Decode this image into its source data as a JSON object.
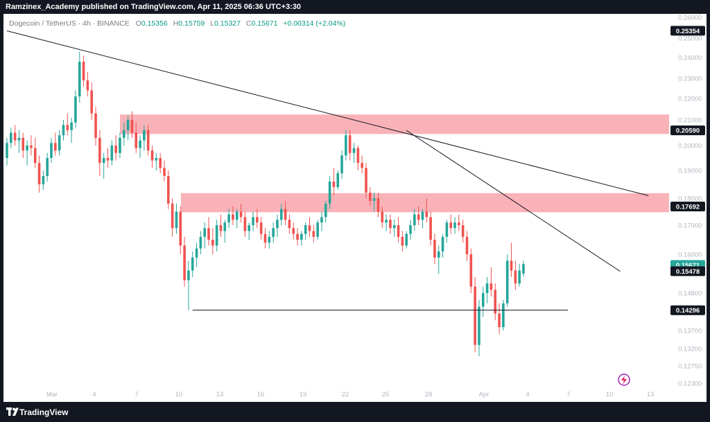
{
  "header": {
    "publisher_line": "Ramzinex_Academy published on TradingView.com, Apr 11, 2025 06:36 UTC+3:30"
  },
  "footer": {
    "brand": "TradingView"
  },
  "legend": {
    "symbol": "Dogecoin / TetherUS · 4h · BINANCE",
    "o_label": "O",
    "o_value": "0.15356",
    "h_label": "H",
    "h_value": "0.15759",
    "l_label": "L",
    "l_value": "0.15327",
    "c_label": "C",
    "c_value": "0.15671",
    "change": "+0.00314 (+2.04%)",
    "up_color": "#089981"
  },
  "colors": {
    "up": "#26a69a",
    "down": "#ef5350",
    "zone": "#f8a5ac",
    "line": "#131722",
    "axis_text": "#b2b5be"
  },
  "chart_data": {
    "type": "candlestick",
    "title": "",
    "xlabel": "",
    "ylabel": "",
    "timeframe": "4h",
    "ylim": [
      0.123,
      0.26
    ],
    "y_ticks": [
      "0.26000",
      "0.25000",
      "0.24000",
      "0.23000",
      "0.22000",
      "0.21000",
      "0.20000",
      "0.19000",
      "0.18000",
      "0.17000",
      "0.16000",
      "0.14800",
      "0.13700",
      "0.13200",
      "0.12750",
      "0.12300"
    ],
    "x_ticks": [
      "Mar",
      "4",
      "7",
      "10",
      "13",
      "16",
      "19",
      "22",
      "25",
      "28",
      "Apr",
      "4",
      "7",
      "10",
      "13"
    ],
    "price_labels": [
      {
        "text": "0.25354",
        "value": 0.25354,
        "style": "dark"
      },
      {
        "text": "0.20590",
        "value": 0.2059,
        "style": "dark"
      },
      {
        "text": "0.17692",
        "value": 0.17692,
        "style": "dark"
      },
      {
        "text": "0.15671",
        "value": 0.15671,
        "style": "green"
      },
      {
        "text": "0.15478",
        "value": 0.15478,
        "style": "dark"
      },
      {
        "text": "0.14296",
        "value": 0.14296,
        "style": "dark"
      }
    ],
    "zones": [
      {
        "name": "upper resistance zone",
        "from": 0.2045,
        "to": 0.2125
      },
      {
        "name": "lower resistance zone",
        "from": 0.1748,
        "to": 0.1818
      }
    ],
    "trendlines": [
      {
        "from": [
          0,
          0.2535
        ],
        "to": [
          159,
          0.1809
        ]
      },
      {
        "from": [
          99,
          0.2059
        ],
        "to": [
          152,
          0.1547
        ]
      },
      {
        "from": [
          46,
          0.143
        ],
        "to": [
          139,
          0.143
        ]
      }
    ],
    "candles": [
      [
        0.195,
        0.203,
        0.192,
        0.201
      ],
      [
        0.201,
        0.207,
        0.199,
        0.205
      ],
      [
        0.205,
        0.208,
        0.2,
        0.202
      ],
      [
        0.202,
        0.206,
        0.197,
        0.203
      ],
      [
        0.203,
        0.205,
        0.195,
        0.198
      ],
      [
        0.198,
        0.202,
        0.192,
        0.2
      ],
      [
        0.2,
        0.204,
        0.196,
        0.199
      ],
      [
        0.199,
        0.203,
        0.191,
        0.193
      ],
      [
        0.193,
        0.196,
        0.182,
        0.185
      ],
      [
        0.185,
        0.19,
        0.183,
        0.188
      ],
      [
        0.188,
        0.197,
        0.186,
        0.195
      ],
      [
        0.195,
        0.203,
        0.193,
        0.201
      ],
      [
        0.201,
        0.205,
        0.196,
        0.198
      ],
      [
        0.198,
        0.206,
        0.196,
        0.204
      ],
      [
        0.204,
        0.21,
        0.202,
        0.208
      ],
      [
        0.208,
        0.213,
        0.204,
        0.206
      ],
      [
        0.206,
        0.211,
        0.201,
        0.209
      ],
      [
        0.209,
        0.224,
        0.207,
        0.221
      ],
      [
        0.221,
        0.243,
        0.218,
        0.238
      ],
      [
        0.238,
        0.241,
        0.226,
        0.229
      ],
      [
        0.229,
        0.233,
        0.221,
        0.224
      ],
      [
        0.224,
        0.228,
        0.21,
        0.213
      ],
      [
        0.213,
        0.216,
        0.2,
        0.203
      ],
      [
        0.203,
        0.206,
        0.188,
        0.193
      ],
      [
        0.193,
        0.197,
        0.187,
        0.195
      ],
      [
        0.195,
        0.199,
        0.191,
        0.194
      ],
      [
        0.194,
        0.202,
        0.192,
        0.2
      ],
      [
        0.2,
        0.204,
        0.194,
        0.197
      ],
      [
        0.197,
        0.205,
        0.195,
        0.203
      ],
      [
        0.203,
        0.209,
        0.2,
        0.206
      ],
      [
        0.206,
        0.212,
        0.202,
        0.21
      ],
      [
        0.21,
        0.214,
        0.203,
        0.205
      ],
      [
        0.205,
        0.209,
        0.197,
        0.199
      ],
      [
        0.199,
        0.204,
        0.195,
        0.202
      ],
      [
        0.202,
        0.208,
        0.198,
        0.206
      ],
      [
        0.206,
        0.208,
        0.196,
        0.198
      ],
      [
        0.198,
        0.2,
        0.191,
        0.194
      ],
      [
        0.194,
        0.197,
        0.19,
        0.195
      ],
      [
        0.195,
        0.197,
        0.189,
        0.191
      ],
      [
        0.191,
        0.194,
        0.186,
        0.188
      ],
      [
        0.188,
        0.19,
        0.176,
        0.178
      ],
      [
        0.178,
        0.18,
        0.166,
        0.169
      ],
      [
        0.169,
        0.178,
        0.167,
        0.175
      ],
      [
        0.175,
        0.177,
        0.16,
        0.163
      ],
      [
        0.163,
        0.166,
        0.15,
        0.152
      ],
      [
        0.152,
        0.158,
        0.143,
        0.155
      ],
      [
        0.155,
        0.161,
        0.153,
        0.159
      ],
      [
        0.159,
        0.164,
        0.156,
        0.162
      ],
      [
        0.162,
        0.168,
        0.16,
        0.166
      ],
      [
        0.166,
        0.171,
        0.162,
        0.169
      ],
      [
        0.169,
        0.173,
        0.163,
        0.165
      ],
      [
        0.165,
        0.169,
        0.16,
        0.163
      ],
      [
        0.163,
        0.172,
        0.161,
        0.17
      ],
      [
        0.17,
        0.174,
        0.166,
        0.168
      ],
      [
        0.168,
        0.172,
        0.164,
        0.171
      ],
      [
        0.171,
        0.176,
        0.169,
        0.174
      ],
      [
        0.174,
        0.177,
        0.17,
        0.172
      ],
      [
        0.172,
        0.176,
        0.169,
        0.175
      ],
      [
        0.175,
        0.178,
        0.171,
        0.173
      ],
      [
        0.173,
        0.175,
        0.166,
        0.168
      ],
      [
        0.168,
        0.171,
        0.165,
        0.17
      ],
      [
        0.17,
        0.175,
        0.168,
        0.173
      ],
      [
        0.173,
        0.176,
        0.169,
        0.171
      ],
      [
        0.171,
        0.173,
        0.165,
        0.167
      ],
      [
        0.167,
        0.169,
        0.162,
        0.164
      ],
      [
        0.164,
        0.168,
        0.162,
        0.166
      ],
      [
        0.166,
        0.171,
        0.164,
        0.169
      ],
      [
        0.169,
        0.174,
        0.166,
        0.172
      ],
      [
        0.172,
        0.178,
        0.17,
        0.176
      ],
      [
        0.176,
        0.179,
        0.17,
        0.172
      ],
      [
        0.172,
        0.174,
        0.167,
        0.169
      ],
      [
        0.169,
        0.171,
        0.165,
        0.167
      ],
      [
        0.167,
        0.169,
        0.163,
        0.165
      ],
      [
        0.165,
        0.168,
        0.163,
        0.167
      ],
      [
        0.167,
        0.171,
        0.165,
        0.17
      ],
      [
        0.17,
        0.173,
        0.166,
        0.168
      ],
      [
        0.168,
        0.17,
        0.164,
        0.166
      ],
      [
        0.166,
        0.172,
        0.165,
        0.171
      ],
      [
        0.171,
        0.175,
        0.168,
        0.173
      ],
      [
        0.173,
        0.179,
        0.171,
        0.178
      ],
      [
        0.178,
        0.188,
        0.176,
        0.186
      ],
      [
        0.186,
        0.191,
        0.181,
        0.184
      ],
      [
        0.184,
        0.19,
        0.183,
        0.189
      ],
      [
        0.189,
        0.198,
        0.187,
        0.196
      ],
      [
        0.196,
        0.206,
        0.194,
        0.204
      ],
      [
        0.204,
        0.206,
        0.194,
        0.197
      ],
      [
        0.197,
        0.201,
        0.193,
        0.199
      ],
      [
        0.199,
        0.2,
        0.19,
        0.193
      ],
      [
        0.193,
        0.196,
        0.189,
        0.191
      ],
      [
        0.191,
        0.193,
        0.18,
        0.182
      ],
      [
        0.182,
        0.184,
        0.177,
        0.179
      ],
      [
        0.179,
        0.182,
        0.175,
        0.18
      ],
      [
        0.18,
        0.182,
        0.173,
        0.175
      ],
      [
        0.175,
        0.177,
        0.169,
        0.171
      ],
      [
        0.171,
        0.174,
        0.168,
        0.172
      ],
      [
        0.172,
        0.174,
        0.167,
        0.169
      ],
      [
        0.169,
        0.172,
        0.166,
        0.17
      ],
      [
        0.17,
        0.173,
        0.164,
        0.166
      ],
      [
        0.166,
        0.168,
        0.161,
        0.163
      ],
      [
        0.163,
        0.168,
        0.162,
        0.167
      ],
      [
        0.167,
        0.172,
        0.165,
        0.17
      ],
      [
        0.17,
        0.176,
        0.168,
        0.174
      ],
      [
        0.174,
        0.177,
        0.17,
        0.172
      ],
      [
        0.172,
        0.176,
        0.169,
        0.175
      ],
      [
        0.175,
        0.18,
        0.171,
        0.173
      ],
      [
        0.173,
        0.175,
        0.163,
        0.165
      ],
      [
        0.165,
        0.167,
        0.157,
        0.159
      ],
      [
        0.159,
        0.163,
        0.154,
        0.161
      ],
      [
        0.161,
        0.167,
        0.159,
        0.166
      ],
      [
        0.166,
        0.172,
        0.164,
        0.171
      ],
      [
        0.171,
        0.174,
        0.167,
        0.169
      ],
      [
        0.169,
        0.173,
        0.167,
        0.171
      ],
      [
        0.171,
        0.174,
        0.168,
        0.17
      ],
      [
        0.17,
        0.172,
        0.164,
        0.166
      ],
      [
        0.166,
        0.168,
        0.158,
        0.16
      ],
      [
        0.16,
        0.162,
        0.148,
        0.15
      ],
      [
        0.15,
        0.153,
        0.131,
        0.133
      ],
      [
        0.133,
        0.146,
        0.13,
        0.144
      ],
      [
        0.144,
        0.15,
        0.141,
        0.148
      ],
      [
        0.148,
        0.153,
        0.145,
        0.151
      ],
      [
        0.151,
        0.156,
        0.147,
        0.149
      ],
      [
        0.149,
        0.151,
        0.14,
        0.142
      ],
      [
        0.142,
        0.145,
        0.136,
        0.138
      ],
      [
        0.138,
        0.146,
        0.137,
        0.145
      ],
      [
        0.145,
        0.16,
        0.144,
        0.158
      ],
      [
        0.158,
        0.164,
        0.153,
        0.155
      ],
      [
        0.155,
        0.158,
        0.149,
        0.151
      ],
      [
        0.151,
        0.157,
        0.15,
        0.155
      ],
      [
        0.154,
        0.158,
        0.153,
        0.157
      ]
    ]
  }
}
